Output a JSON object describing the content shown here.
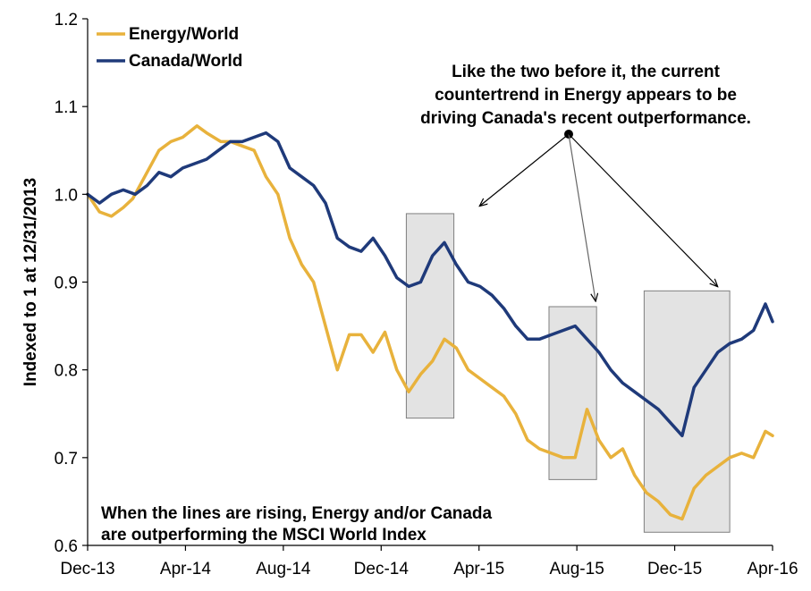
{
  "chart_data": {
    "type": "line",
    "ylabel": "Indexed to 1 at 12/31/2013",
    "xlabel": "",
    "ylim": [
      0.6,
      1.2
    ],
    "yticks": [
      "0.6",
      "0.7",
      "0.8",
      "0.9",
      "1.0",
      "1.1",
      "1.2"
    ],
    "xticks": [
      "Dec-13",
      "Apr-14",
      "Aug-14",
      "Dec-14",
      "Apr-15",
      "Aug-15",
      "Dec-15",
      "Apr-16"
    ],
    "grid": false,
    "legend_position": "top-left",
    "colors": {
      "energy": "#E8B23C",
      "canada": "#1F3A7A",
      "box_fill": "#D9D9D9",
      "box_stroke": "#7F7F7F"
    },
    "series": [
      {
        "name": "Energy/World",
        "x": [
          0,
          0.5,
          1,
          1.5,
          1.9,
          2.4,
          3,
          3.5,
          4,
          4.6,
          5,
          5.6,
          6,
          6.5,
          7,
          7.5,
          8,
          8.5,
          9,
          9.5,
          10,
          10.5,
          11,
          11.5,
          12,
          12.5,
          13,
          13.5,
          14,
          14.5,
          15,
          15.5,
          16,
          16.5,
          17,
          17.5,
          18,
          18.5,
          19,
          19.5,
          20,
          20.5,
          21,
          21.5,
          22,
          22.5,
          23,
          23.5,
          24,
          24.5,
          25,
          25.5,
          26,
          26.5,
          27,
          27.5,
          28,
          28.5,
          28.8
        ],
        "values": [
          1.0,
          0.98,
          0.975,
          0.985,
          0.995,
          1.02,
          1.05,
          1.06,
          1.065,
          1.078,
          1.07,
          1.06,
          1.06,
          1.055,
          1.05,
          1.02,
          1.0,
          0.95,
          0.92,
          0.9,
          0.85,
          0.8,
          0.84,
          0.84,
          0.82,
          0.843,
          0.8,
          0.775,
          0.795,
          0.81,
          0.835,
          0.825,
          0.8,
          0.79,
          0.78,
          0.77,
          0.75,
          0.72,
          0.71,
          0.705,
          0.7,
          0.7,
          0.755,
          0.72,
          0.7,
          0.71,
          0.68,
          0.66,
          0.65,
          0.635,
          0.63,
          0.665,
          0.68,
          0.69,
          0.7,
          0.705,
          0.7,
          0.73,
          0.725
        ]
      },
      {
        "name": "Canada/World",
        "x": [
          0,
          0.5,
          1,
          1.5,
          2,
          2.5,
          3,
          3.5,
          4,
          4.5,
          5,
          5.5,
          6,
          6.5,
          7,
          7.5,
          8,
          8.5,
          9,
          9.5,
          10,
          10.5,
          11,
          11.5,
          12,
          12.5,
          13,
          13.5,
          14,
          14.5,
          15,
          15.5,
          16,
          16.5,
          17,
          17.5,
          18,
          18.5,
          19,
          19.5,
          20,
          20.5,
          21,
          21.5,
          22,
          22.5,
          23,
          23.5,
          24,
          24.5,
          25,
          25.5,
          26,
          26.5,
          27,
          27.5,
          28,
          28.5,
          28.8
        ],
        "values": [
          1.0,
          0.99,
          1.0,
          1.005,
          1.0,
          1.01,
          1.025,
          1.02,
          1.03,
          1.035,
          1.04,
          1.05,
          1.06,
          1.06,
          1.065,
          1.07,
          1.06,
          1.03,
          1.02,
          1.01,
          0.99,
          0.95,
          0.94,
          0.935,
          0.95,
          0.93,
          0.905,
          0.895,
          0.9,
          0.93,
          0.945,
          0.92,
          0.9,
          0.895,
          0.885,
          0.87,
          0.85,
          0.835,
          0.835,
          0.84,
          0.845,
          0.85,
          0.835,
          0.82,
          0.8,
          0.785,
          0.775,
          0.765,
          0.755,
          0.74,
          0.725,
          0.78,
          0.8,
          0.82,
          0.83,
          0.835,
          0.845,
          0.875,
          0.855
        ]
      }
    ],
    "shaded_ranges": [
      {
        "x": [
          13.4,
          15.4
        ],
        "y": [
          0.745,
          0.978
        ]
      },
      {
        "x": [
          19.4,
          21.4
        ],
        "y": [
          0.675,
          0.872
        ]
      },
      {
        "x": [
          23.4,
          27.0
        ],
        "y": [
          0.615,
          0.89
        ]
      }
    ],
    "annotations": {
      "top_right": [
        "Like the two before it, the current",
        "countertrend in Energy appears to be",
        "driving Canada's recent outperformance."
      ],
      "bottom_left": [
        "When the lines are rising, Energy and/or Canada",
        "are outperforming the MSCI World Index"
      ]
    }
  }
}
